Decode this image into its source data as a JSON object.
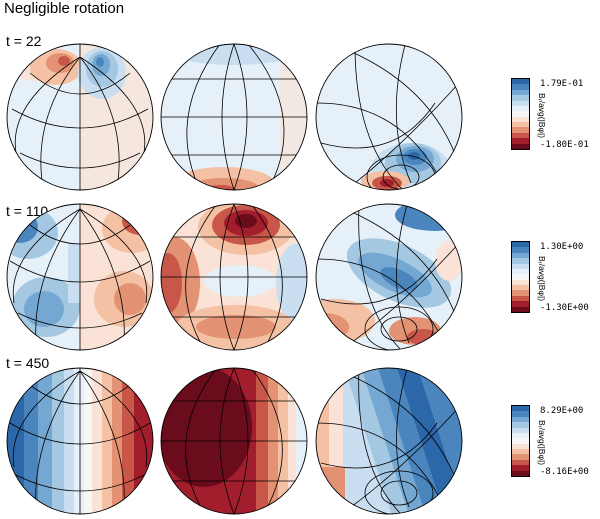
{
  "title": "Negligible rotation",
  "colors": [
    "#2c67a9",
    "#4a85bd",
    "#74a7d1",
    "#a4c7e2",
    "#c9def0",
    "#e6f0f8",
    "#f7f7f7",
    "#fae3d6",
    "#f4c1a4",
    "#e39274",
    "#c8574a",
    "#a21e2c",
    "#6a0c1c"
  ],
  "rows": [
    {
      "label": "t = 22",
      "max": "1.79E-01",
      "min": "-1.80E-01",
      "unit": "Bᵣ/avg(|Bφ|)"
    },
    {
      "label": "t = 110",
      "max": "1.30E+00",
      "min": "-1.30E+00",
      "unit": "Bᵣ/avg(|Bφ|)"
    },
    {
      "label": "t = 450",
      "max": "8.29E+00",
      "min": "-8.16E+00",
      "unit": "Bᵣ/avg(|Bφ|)"
    }
  ]
}
